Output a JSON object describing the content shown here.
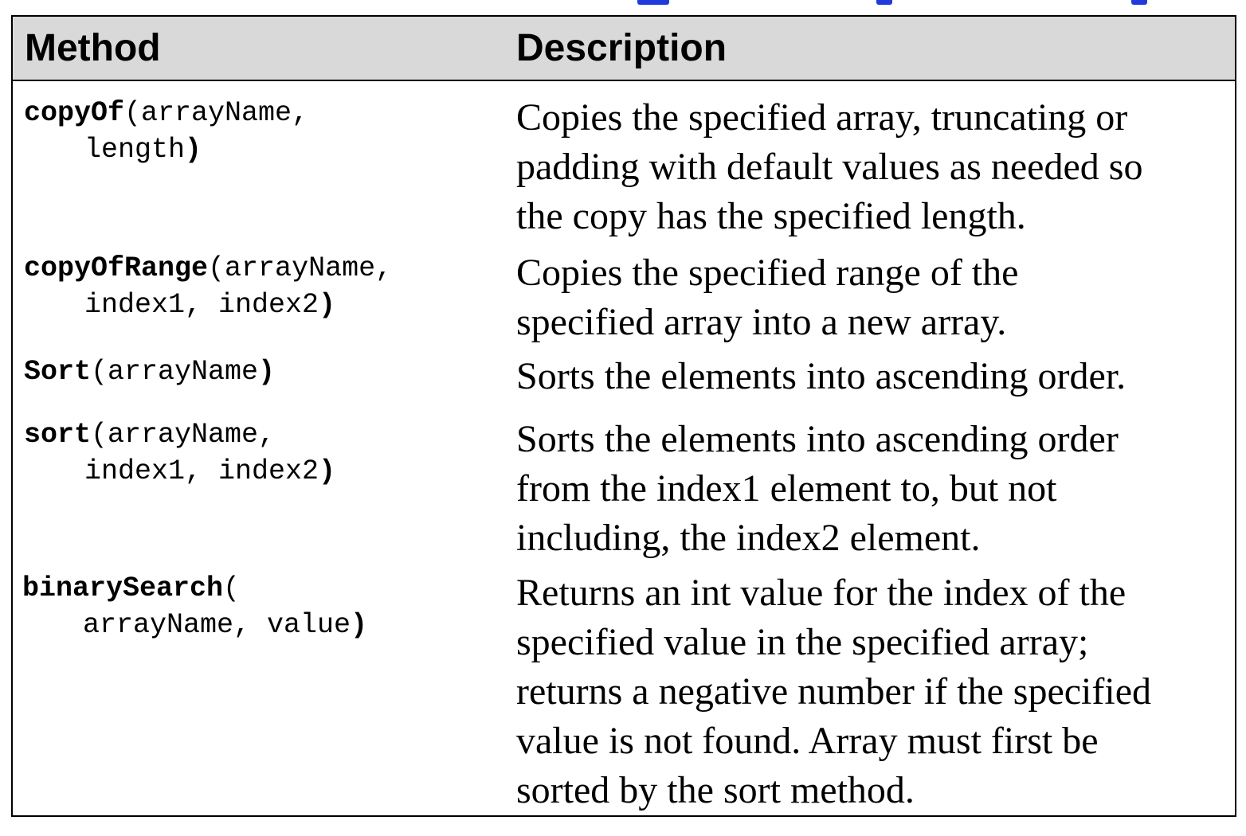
{
  "header": {
    "method": "Method",
    "description": "Description"
  },
  "rows": [
    {
      "name": "copyOf",
      "args_line1": "(arrayName,",
      "args_line2": "length",
      "close": ")",
      "description_lines": [
        "Copies the specified array, truncating or",
        "padding with default values as needed so",
        "the copy has the specified length."
      ]
    },
    {
      "name": "copyOfRange",
      "args_line1": "(arrayName,",
      "args_line2": "index1, index2",
      "close": ")",
      "description_lines": [
        "Copies the specified range of the",
        "specified array into a new array."
      ]
    },
    {
      "name": "Sort",
      "args_line1": "(arrayName",
      "args_line2": "",
      "close": ")",
      "description_lines": [
        "Sorts the elements into ascending order."
      ]
    },
    {
      "name": "sort",
      "args_line1": "(arrayName,",
      "args_line2": "index1, index2",
      "close": ")",
      "description_lines": [
        "Sorts the elements into ascending order",
        "from the index1 element to, but not",
        "including, the index2 element."
      ]
    },
    {
      "name": "binarySearch",
      "args_line1": "(",
      "args_line2": "arrayName, value",
      "close": ")",
      "description_lines": [
        "Returns an int value for the index of the",
        "specified value in the specified array;",
        "returns a negative number if the specified",
        "value is not found. Array must first be",
        "sorted by the sort method."
      ]
    }
  ]
}
